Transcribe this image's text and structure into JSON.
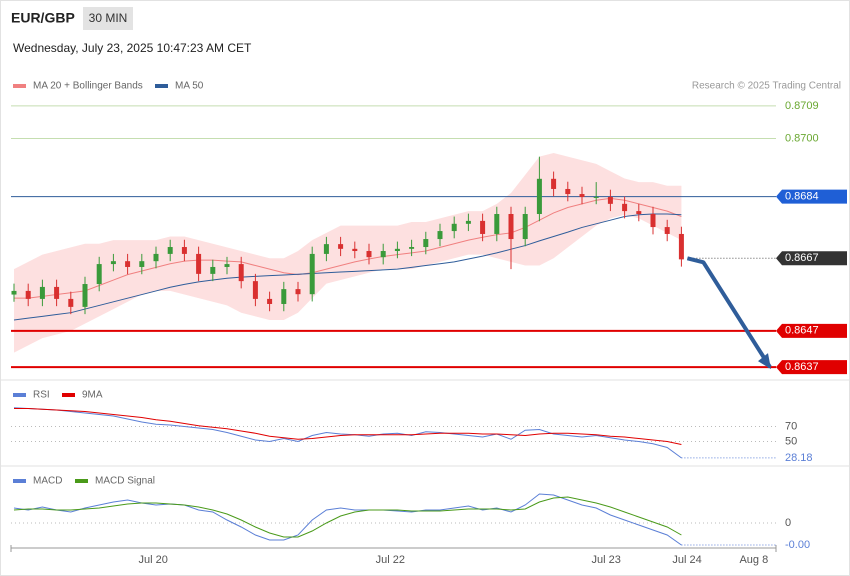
{
  "header": {
    "symbol": "EUR/GBP",
    "timeframe": "30 MIN",
    "timestamp": "Wednesday, July 23, 2025 10:47:23 AM CET"
  },
  "chart_data": [
    {
      "type": "candlestick",
      "credit": "Research © 2025 Trading Central",
      "up_color": "#3a9a3a",
      "down_color": "#d93030",
      "open": [
        0.8657,
        0.8658,
        0.86558,
        0.86591,
        0.86558,
        0.86536,
        0.86599,
        0.86654,
        0.86662,
        0.86646,
        0.86662,
        0.86682,
        0.86701,
        0.86682,
        0.86627,
        0.86646,
        0.86654,
        0.86607,
        0.86558,
        0.86544,
        0.86585,
        0.86571,
        0.86682,
        0.86709,
        0.86696,
        0.8669,
        0.86673,
        0.8669,
        0.86696,
        0.86701,
        0.86723,
        0.86745,
        0.86765,
        0.86773,
        0.86737,
        0.86792,
        0.86723,
        0.86792,
        0.86889,
        0.86861,
        0.86847,
        0.86839,
        0.86839,
        0.8682,
        0.868,
        0.86792,
        0.86756,
        0.86737
      ],
      "high": [
        0.866,
        0.866,
        0.86611,
        0.86611,
        0.86578,
        0.86619,
        0.86674,
        0.86682,
        0.86682,
        0.86682,
        0.86702,
        0.86721,
        0.86721,
        0.86702,
        0.86666,
        0.86674,
        0.86674,
        0.86627,
        0.86578,
        0.86605,
        0.86605,
        0.86702,
        0.86729,
        0.86729,
        0.86716,
        0.8671,
        0.8671,
        0.86716,
        0.86721,
        0.86743,
        0.86765,
        0.86785,
        0.86793,
        0.86793,
        0.86812,
        0.86812,
        0.86812,
        0.8695,
        0.86909,
        0.86881,
        0.86867,
        0.8688,
        0.86859,
        0.8684,
        0.8682,
        0.86812,
        0.86776,
        0.86757
      ],
      "low": [
        0.8655,
        0.86538,
        0.86538,
        0.86538,
        0.86516,
        0.86516,
        0.86579,
        0.86634,
        0.86626,
        0.86626,
        0.86642,
        0.86662,
        0.86662,
        0.86607,
        0.86607,
        0.86626,
        0.86587,
        0.86538,
        0.86524,
        0.86524,
        0.86551,
        0.86551,
        0.86662,
        0.86676,
        0.8667,
        0.86653,
        0.86653,
        0.8667,
        0.86676,
        0.86681,
        0.86703,
        0.86725,
        0.86745,
        0.86717,
        0.86717,
        0.8664,
        0.86703,
        0.86772,
        0.86841,
        0.86827,
        0.86819,
        0.86819,
        0.868,
        0.8678,
        0.86772,
        0.86736,
        0.86717,
        0.86647
      ],
      "close": [
        0.8658,
        0.86558,
        0.86591,
        0.86558,
        0.86536,
        0.86599,
        0.86654,
        0.86662,
        0.86646,
        0.86662,
        0.86682,
        0.86701,
        0.86682,
        0.86627,
        0.86646,
        0.86654,
        0.86607,
        0.86558,
        0.86544,
        0.86585,
        0.86571,
        0.86682,
        0.86709,
        0.86696,
        0.8669,
        0.86673,
        0.8669,
        0.86696,
        0.86701,
        0.86723,
        0.86745,
        0.86765,
        0.86773,
        0.86737,
        0.86792,
        0.86723,
        0.86792,
        0.86889,
        0.86861,
        0.86847,
        0.86839,
        0.86839,
        0.8682,
        0.868,
        0.86792,
        0.86756,
        0.86737,
        0.86667
      ],
      "series": [
        {
          "name": "MA 20 + Bollinger Bands",
          "color": "#f08080",
          "band_color": "#fde0e0",
          "values": [
            0.8656,
            0.8656,
            0.86565,
            0.8657,
            0.86575,
            0.8658,
            0.86595,
            0.8661,
            0.86625,
            0.86635,
            0.86645,
            0.86655,
            0.86662,
            0.86665,
            0.86665,
            0.86662,
            0.8666,
            0.8665,
            0.8664,
            0.8663,
            0.86625,
            0.8663,
            0.8664,
            0.8665,
            0.8666,
            0.86668,
            0.86675,
            0.8668,
            0.86685,
            0.8669,
            0.867,
            0.8671,
            0.8672,
            0.86728,
            0.86735,
            0.8674,
            0.86755,
            0.86775,
            0.86795,
            0.8681,
            0.8682,
            0.8683,
            0.86835,
            0.8683,
            0.8682,
            0.8681,
            0.868,
            0.86785
          ],
          "upper": [
            0.8664,
            0.8666,
            0.8668,
            0.8669,
            0.867,
            0.8671,
            0.8671,
            0.8672,
            0.8672,
            0.8672,
            0.8672,
            0.8673,
            0.8673,
            0.8672,
            0.8671,
            0.867,
            0.8669,
            0.8668,
            0.8667,
            0.8667,
            0.8669,
            0.8672,
            0.8674,
            0.8676,
            0.8676,
            0.8676,
            0.8676,
            0.8676,
            0.8677,
            0.8677,
            0.8678,
            0.8679,
            0.868,
            0.868,
            0.8682,
            0.8685,
            0.869,
            0.8695,
            0.8696,
            0.8695,
            0.8694,
            0.8693,
            0.8691,
            0.8689,
            0.8688,
            0.8688,
            0.8687,
            0.8687
          ],
          "lower": [
            0.8641,
            0.8643,
            0.8645,
            0.8646,
            0.8647,
            0.8649,
            0.8651,
            0.8653,
            0.8655,
            0.8657,
            0.8658,
            0.8658,
            0.8657,
            0.8656,
            0.8655,
            0.8654,
            0.8652,
            0.8651,
            0.865,
            0.865,
            0.8652,
            0.8656,
            0.866,
            0.8661,
            0.8662,
            0.8663,
            0.8664,
            0.8664,
            0.8664,
            0.8665,
            0.8666,
            0.8667,
            0.8668,
            0.8668,
            0.8667,
            0.8666,
            0.8665,
            0.8665,
            0.8667,
            0.867,
            0.8673,
            0.8676,
            0.8678,
            0.8679,
            0.8678,
            0.8676,
            0.8674,
            0.8672
          ]
        },
        {
          "name": "MA 50",
          "color": "#2f5d9a",
          "values": [
            0.865,
            0.86505,
            0.8651,
            0.86515,
            0.8652,
            0.8653,
            0.8654,
            0.8655,
            0.8656,
            0.8657,
            0.8658,
            0.8659,
            0.86598,
            0.86605,
            0.8661,
            0.86615,
            0.86618,
            0.8662,
            0.86622,
            0.86624,
            0.86626,
            0.86628,
            0.8663,
            0.86632,
            0.86634,
            0.86636,
            0.86638,
            0.8664,
            0.86645,
            0.8665,
            0.86655,
            0.8666,
            0.86668,
            0.86676,
            0.86685,
            0.86695,
            0.86705,
            0.86718,
            0.8673,
            0.86742,
            0.86755,
            0.86765,
            0.86775,
            0.86785,
            0.8679,
            0.86792,
            0.86792,
            0.8679
          ]
        }
      ],
      "ylim": [
        0.8634,
        0.8712
      ],
      "levels": [
        {
          "value": 0.8709,
          "color": "#6aa832",
          "line_color": "#c5deb0"
        },
        {
          "value": 0.87,
          "label": "0.8700",
          "color": "#6aa832",
          "line_color": "#c5deb0"
        },
        {
          "value": 0.8684,
          "color": "#1f5fd6",
          "line_color": "#2f5d9a",
          "tag": true
        },
        {
          "value": 0.8667,
          "color": "#333333",
          "line_color": "#555555",
          "tag": true,
          "dotted": true
        },
        {
          "value": 0.8647,
          "color": "#e00000",
          "line_color": "#e00000",
          "tag": true
        },
        {
          "value": 0.8637,
          "color": "#e00000",
          "line_color": "#e00000",
          "tag": true
        }
      ],
      "forecast": {
        "color": "#2f5d9a",
        "values": [
          0.8667,
          0.86659,
          0.8637
        ]
      }
    },
    {
      "type": "line",
      "label_last": true,
      "ylim": [
        20,
        100
      ],
      "yticks": [
        70,
        50
      ],
      "series": [
        {
          "name": "RSI",
          "color": "#5b7fd6",
          "values": [
            95,
            94,
            93,
            92,
            90,
            88,
            86,
            84,
            80,
            76,
            73,
            72,
            70,
            68,
            66,
            62,
            57,
            52,
            50,
            54,
            50,
            58,
            62,
            60,
            59,
            57,
            60,
            61,
            58,
            63,
            62,
            60,
            58,
            56,
            60,
            53,
            65,
            66,
            60,
            58,
            56,
            58,
            55,
            52,
            50,
            47,
            42,
            28.18
          ]
        },
        {
          "name": "9MA",
          "color": "#e00000",
          "values": [
            94,
            94,
            93,
            92,
            91,
            90,
            88,
            86,
            84,
            82,
            79,
            77,
            74,
            71,
            69,
            67,
            64,
            61,
            57,
            55,
            53,
            54,
            56,
            58,
            59,
            59,
            59,
            59,
            59,
            60,
            61,
            61,
            61,
            60,
            60,
            59,
            58,
            60,
            61,
            61,
            60,
            59,
            57,
            56,
            54,
            52,
            50,
            46
          ]
        }
      ]
    },
    {
      "type": "line",
      "ylim": [
        -0.00025,
        0.00055
      ],
      "yticks": [
        0
      ],
      "xlabels": [
        "Jul 20",
        "Jul 22",
        "Jul 23",
        "Jul 24",
        "Aug 8"
      ],
      "series": [
        {
          "name": "MACD",
          "color": "#5b7fd6",
          "values": [
            0.00015,
            0.00013,
            0.00016,
            0.00013,
            0.00011,
            0.00015,
            0.00018,
            0.00021,
            0.00023,
            0.0002,
            0.00018,
            0.00019,
            0.00018,
            0.00013,
            0.00011,
            3e-05,
            -4e-05,
            -0.00012,
            -0.00017,
            -0.00017,
            -0.00012,
            3e-05,
            0.00013,
            0.00015,
            0.00013,
            0.00013,
            0.00013,
            0.00012,
            0.00011,
            0.00013,
            0.00013,
            0.00015,
            0.00017,
            0.00013,
            0.00015,
            0.00011,
            0.00018,
            0.00029,
            0.00028,
            0.00023,
            0.00018,
            0.00015,
            8e-05,
            3e-05,
            -2e-05,
            -7e-05,
            -0.00012,
            -0.00022
          ],
          "value_labels": [
            null,
            null,
            null,
            null,
            null,
            null,
            null,
            null,
            null,
            null,
            null,
            null,
            null,
            null,
            null,
            null,
            null,
            null,
            null,
            null,
            null,
            null,
            null,
            null,
            null,
            null,
            null,
            null,
            null,
            null,
            null,
            null,
            null,
            null,
            null,
            null,
            null,
            null,
            null,
            null,
            null,
            null,
            null,
            null,
            null,
            null,
            null,
            "-0.00"
          ]
        },
        {
          "name": "MACD Signal",
          "color": "#4a9a1a",
          "values": [
            0.00013,
            0.00014,
            0.00014,
            0.00013,
            0.00013,
            0.00014,
            0.00015,
            0.00017,
            0.00019,
            0.0002,
            0.0002,
            0.00019,
            0.00018,
            0.00016,
            0.00013,
            9e-05,
            3e-05,
            -4e-05,
            -0.0001,
            -0.00014,
            -0.00014,
            -8e-05,
            0,
            7e-05,
            0.00011,
            0.00013,
            0.00013,
            0.00013,
            0.00012,
            0.00012,
            0.00012,
            0.00013,
            0.00014,
            0.00014,
            0.00014,
            0.00013,
            0.00014,
            0.00021,
            0.00025,
            0.00026,
            0.00023,
            0.0002,
            0.00016,
            0.00011,
            6e-05,
            1e-05,
            -4e-05,
            -0.00012
          ]
        }
      ]
    }
  ]
}
